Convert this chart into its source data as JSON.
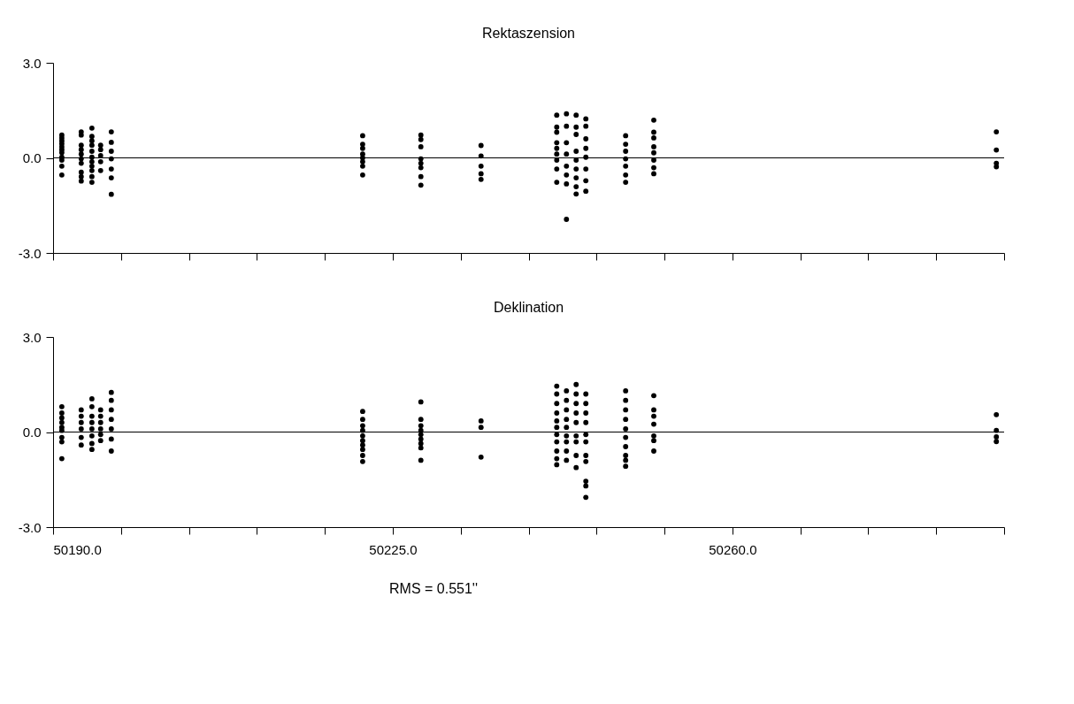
{
  "chart_data": [
    {
      "type": "scatter",
      "title": "Rektaszension",
      "marker": "circle",
      "grid": false,
      "tick_labels": "y",
      "xlim": [
        50190,
        50288
      ],
      "ylim": [
        -3,
        3
      ],
      "xticks": [
        {
          "value": 50190,
          "label": null
        },
        {
          "value": 50197,
          "label": null
        },
        {
          "value": 50204,
          "label": null
        },
        {
          "value": 50211,
          "label": null
        },
        {
          "value": 50218,
          "label": null
        },
        {
          "value": 50225,
          "label": null
        },
        {
          "value": 50232,
          "label": null
        },
        {
          "value": 50239,
          "label": null
        },
        {
          "value": 50246,
          "label": null
        },
        {
          "value": 50253,
          "label": null
        },
        {
          "value": 50260,
          "label": null
        },
        {
          "value": 50267,
          "label": null
        },
        {
          "value": 50274,
          "label": null
        },
        {
          "value": 50281,
          "label": null
        },
        {
          "value": 50288,
          "label": null
        }
      ],
      "yticks": [
        {
          "value": 3,
          "label": "3.0"
        },
        {
          "value": 0,
          "label": "0.0"
        },
        {
          "value": -3,
          "label": "-3.0"
        }
      ],
      "ref_lines": [
        {
          "axis": "y",
          "value": 0,
          "color": "#000000"
        }
      ],
      "x": [
        50190.9,
        50190.9,
        50190.9,
        50190.9,
        50190.9,
        50190.9,
        50190.9,
        50190.9,
        50190.9,
        50190.9,
        50190.9,
        50192.9,
        50192.9,
        50192.9,
        50192.9,
        50192.9,
        50192.9,
        50192.9,
        50192.9,
        50192.9,
        50192.9,
        50194,
        50194,
        50194,
        50194,
        50194,
        50194,
        50194,
        50194,
        50194,
        50194,
        50194,
        50194.9,
        50194.9,
        50194.9,
        50194.9,
        50194.9,
        50196,
        50196,
        50196,
        50196,
        50196,
        50196,
        50196,
        50221.9,
        50221.9,
        50221.9,
        50221.9,
        50221.9,
        50221.9,
        50221.9,
        50221.9,
        50227.9,
        50227.9,
        50227.9,
        50227.9,
        50227.9,
        50227.9,
        50227.9,
        50227.9,
        50234.1,
        50234.1,
        50234.1,
        50234.1,
        50234.1,
        50241.9,
        50241.9,
        50241.9,
        50241.9,
        50241.9,
        50241.9,
        50241.9,
        50241.9,
        50241.9,
        50242.9,
        50242.9,
        50242.9,
        50242.9,
        50242.9,
        50242.9,
        50242.9,
        50242.9,
        50243.9,
        50243.9,
        50243.9,
        50243.9,
        50243.9,
        50243.9,
        50243.9,
        50243.9,
        50243.9,
        50244.9,
        50244.9,
        50244.9,
        50244.9,
        50244.9,
        50244.9,
        50244.9,
        50244.9,
        50249,
        50249,
        50249,
        50249,
        50249,
        50249,
        50249,
        50251.9,
        50251.9,
        50251.9,
        50251.9,
        50251.9,
        50251.9,
        50251.9,
        50251.9,
        50287.2,
        50287.2,
        50287.2,
        50287.2
      ],
      "series": [
        {
          "color": "#000000",
          "values": [
            0.72,
            0.63,
            0.54,
            0.45,
            0.35,
            0.26,
            0.17,
            0.02,
            -0.07,
            -0.26,
            -0.54,
            0.82,
            0.72,
            0.4,
            0.26,
            0.12,
            -0.03,
            -0.17,
            -0.45,
            -0.59,
            -0.73,
            0.94,
            0.68,
            0.54,
            0.4,
            0.21,
            0.02,
            -0.12,
            -0.26,
            -0.4,
            -0.59,
            -0.77,
            0.4,
            0.26,
            0.07,
            -0.12,
            -0.4,
            0.82,
            0.49,
            0.21,
            -0.03,
            -0.35,
            -0.63,
            -1.15,
            0.7,
            0.43,
            0.3,
            0.12,
            0,
            -0.12,
            -0.26,
            -0.54,
            0.72,
            0.58,
            0.35,
            -0.03,
            -0.17,
            -0.31,
            -0.59,
            -0.86,
            0.39,
            0.06,
            -0.26,
            -0.5,
            -0.68,
            1.35,
            0.97,
            0.81,
            0.48,
            0.3,
            0.12,
            -0.07,
            -0.35,
            -0.77,
            1.39,
            1.0,
            0.48,
            0.12,
            -0.26,
            -0.54,
            -0.82,
            -1.94,
            1.35,
            0.97,
            0.74,
            0.21,
            -0.07,
            -0.35,
            -0.63,
            -0.91,
            -1.14,
            1.23,
            1.0,
            0.6,
            0.3,
            0.02,
            -0.35,
            -0.72,
            -1.05,
            0.7,
            0.43,
            0.21,
            -0.03,
            -0.26,
            -0.54,
            -0.77,
            1.19,
            0.81,
            0.63,
            0.35,
            0.16,
            -0.07,
            -0.31,
            -0.5,
            0.82,
            0.25,
            -0.17,
            -0.28
          ]
        }
      ]
    },
    {
      "type": "scatter",
      "title": "Deklination",
      "marker": "circle",
      "grid": false,
      "xlim": [
        50190,
        50288
      ],
      "ylim": [
        -3,
        3
      ],
      "xticks": [
        {
          "value": 50190,
          "label": "50190.0"
        },
        {
          "value": 50197,
          "label": null
        },
        {
          "value": 50204,
          "label": null
        },
        {
          "value": 50211,
          "label": null
        },
        {
          "value": 50218,
          "label": null
        },
        {
          "value": 50225,
          "label": "50225.0"
        },
        {
          "value": 50232,
          "label": null
        },
        {
          "value": 50239,
          "label": null
        },
        {
          "value": 50246,
          "label": null
        },
        {
          "value": 50253,
          "label": null
        },
        {
          "value": 50260,
          "label": "50260.0"
        },
        {
          "value": 50267,
          "label": null
        },
        {
          "value": 50274,
          "label": null
        },
        {
          "value": 50281,
          "label": null
        },
        {
          "value": 50288,
          "label": null
        }
      ],
      "yticks": [
        {
          "value": 3,
          "label": "3.0"
        },
        {
          "value": 0,
          "label": "0.0"
        },
        {
          "value": -3,
          "label": "-3.0"
        }
      ],
      "ref_lines": [
        {
          "axis": "y",
          "value": 0,
          "color": "#000000"
        }
      ],
      "annotations": [
        "RMS =  0.551''"
      ],
      "x": [
        50190.9,
        50190.9,
        50190.9,
        50190.9,
        50190.9,
        50190.9,
        50190.9,
        50190.9,
        50190.9,
        50192.9,
        50192.9,
        50192.9,
        50192.9,
        50192.9,
        50192.9,
        50194,
        50194,
        50194,
        50194,
        50194,
        50194,
        50194,
        50194,
        50194.9,
        50194.9,
        50194.9,
        50194.9,
        50194.9,
        50194.9,
        50196,
        50196,
        50196,
        50196,
        50196,
        50196,
        50196,
        50221.9,
        50221.9,
        50221.9,
        50221.9,
        50221.9,
        50221.9,
        50221.9,
        50221.9,
        50221.9,
        50221.9,
        50227.9,
        50227.9,
        50227.9,
        50227.9,
        50227.9,
        50227.9,
        50227.9,
        50227.9,
        50227.9,
        50234.1,
        50234.1,
        50234.1,
        50241.9,
        50241.9,
        50241.9,
        50241.9,
        50241.9,
        50241.9,
        50241.9,
        50241.9,
        50241.9,
        50241.9,
        50241.9,
        50242.9,
        50242.9,
        50242.9,
        50242.9,
        50242.9,
        50242.9,
        50242.9,
        50242.9,
        50242.9,
        50243.9,
        50243.9,
        50243.9,
        50243.9,
        50243.9,
        50243.9,
        50243.9,
        50243.9,
        50243.9,
        50244.9,
        50244.9,
        50244.9,
        50244.9,
        50244.9,
        50244.9,
        50244.9,
        50244.9,
        50244.9,
        50244.9,
        50244.9,
        50249,
        50249,
        50249,
        50249,
        50249,
        50249,
        50249,
        50249,
        50249,
        50249,
        50251.9,
        50251.9,
        50251.9,
        50251.9,
        50251.9,
        50251.9,
        50251.9,
        50287.2,
        50287.2,
        50287.2,
        50287.2
      ],
      "series": [
        {
          "color": "#000000",
          "values": [
            0.8,
            0.6,
            0.45,
            0.3,
            0.15,
            0.05,
            -0.17,
            -0.31,
            -0.84,
            0.7,
            0.5,
            0.3,
            0.1,
            -0.17,
            -0.41,
            1.05,
            0.8,
            0.5,
            0.3,
            0.1,
            -0.12,
            -0.36,
            -0.55,
            0.7,
            0.5,
            0.3,
            0.1,
            -0.08,
            -0.27,
            1.25,
            1.0,
            0.7,
            0.4,
            0.1,
            -0.22,
            -0.6,
            0.65,
            0.4,
            0.2,
            0.05,
            -0.12,
            -0.27,
            -0.41,
            -0.55,
            -0.74,
            -0.93,
            0.95,
            0.4,
            0.2,
            0.05,
            -0.08,
            -0.22,
            -0.36,
            -0.5,
            -0.89,
            0.35,
            0.15,
            -0.79,
            1.45,
            1.2,
            0.9,
            0.6,
            0.35,
            0.15,
            -0.08,
            -0.31,
            -0.6,
            -0.84,
            -1.03,
            1.3,
            1.0,
            0.7,
            0.4,
            0.15,
            -0.12,
            -0.31,
            -0.6,
            -0.89,
            1.5,
            1.2,
            0.9,
            0.6,
            0.3,
            -0.12,
            -0.31,
            -0.74,
            -1.12,
            1.2,
            0.9,
            0.6,
            0.3,
            -0.08,
            -0.31,
            -0.74,
            -0.93,
            -1.55,
            -1.7,
            -2.06,
            1.3,
            1.0,
            0.7,
            0.4,
            0.1,
            -0.17,
            -0.46,
            -0.74,
            -0.89,
            -1.08,
            1.15,
            0.7,
            0.5,
            0.25,
            -0.12,
            -0.27,
            -0.6,
            0.55,
            0.05,
            -0.15,
            -0.3
          ]
        }
      ]
    }
  ]
}
